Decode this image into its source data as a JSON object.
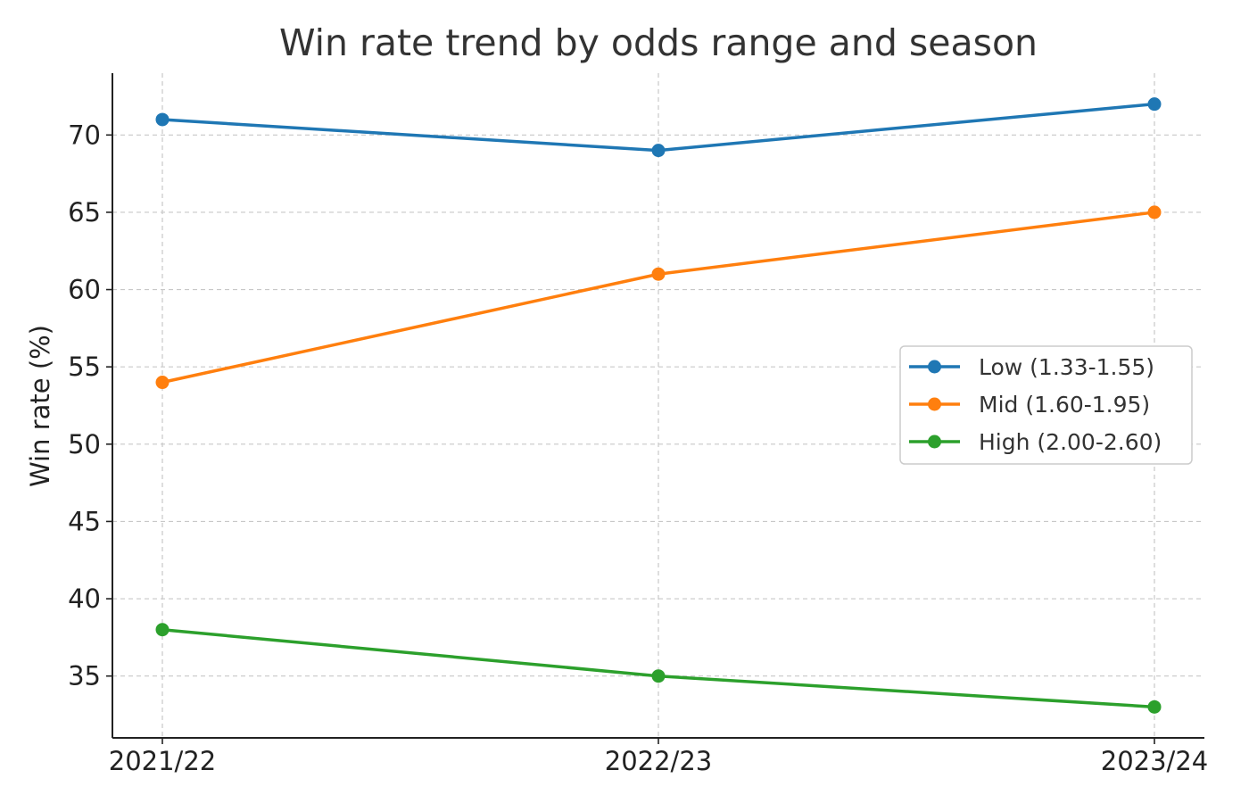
{
  "chart_data": {
    "type": "line",
    "title": "Win rate trend by odds range and season",
    "xlabel": "",
    "ylabel": "Win rate (%)",
    "categories": [
      "2021/22",
      "2022/23",
      "2023/24"
    ],
    "ylim": [
      31,
      74
    ],
    "yticks": [
      35,
      40,
      45,
      50,
      55,
      60,
      65,
      70
    ],
    "grid": true,
    "legend_position": "right",
    "series": [
      {
        "name": "Low (1.33-1.55)",
        "color": "#1f77b4",
        "values": [
          71,
          69,
          72
        ]
      },
      {
        "name": "Mid (1.60-1.95)",
        "color": "#ff7f0e",
        "values": [
          54,
          61,
          65
        ]
      },
      {
        "name": "High (2.00-2.60)",
        "color": "#2ca02c",
        "values": [
          38,
          35,
          33
        ]
      }
    ]
  }
}
